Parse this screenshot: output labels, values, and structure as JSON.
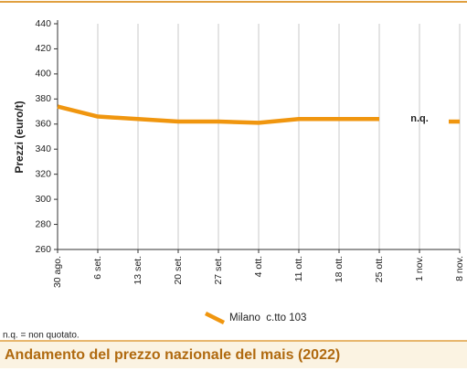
{
  "chart_data": {
    "type": "line",
    "title": "Andamento del prezzo nazionale del mais (2022)",
    "y_label": "Prezzi (euro/t)",
    "note": "n.q. = non quotato.",
    "annotation": "n.q.",
    "categories": [
      "30 ago.",
      "6 set.",
      "13 set.",
      "20 set.",
      "27 set.",
      "4 ott.",
      "11 ott.",
      "18 ott.",
      "25 ott.",
      "1 nov.",
      "8 nov."
    ],
    "series": [
      {
        "name": "Milano  c.tto 103",
        "color": "#f0960f",
        "values": [
          374,
          366,
          364,
          362,
          362,
          361,
          364,
          364,
          364,
          null,
          362
        ]
      }
    ],
    "ylim": [
      260,
      440
    ],
    "yticks": [
      260,
      280,
      300,
      320,
      340,
      360,
      380,
      400,
      420,
      440
    ],
    "grid": true
  }
}
